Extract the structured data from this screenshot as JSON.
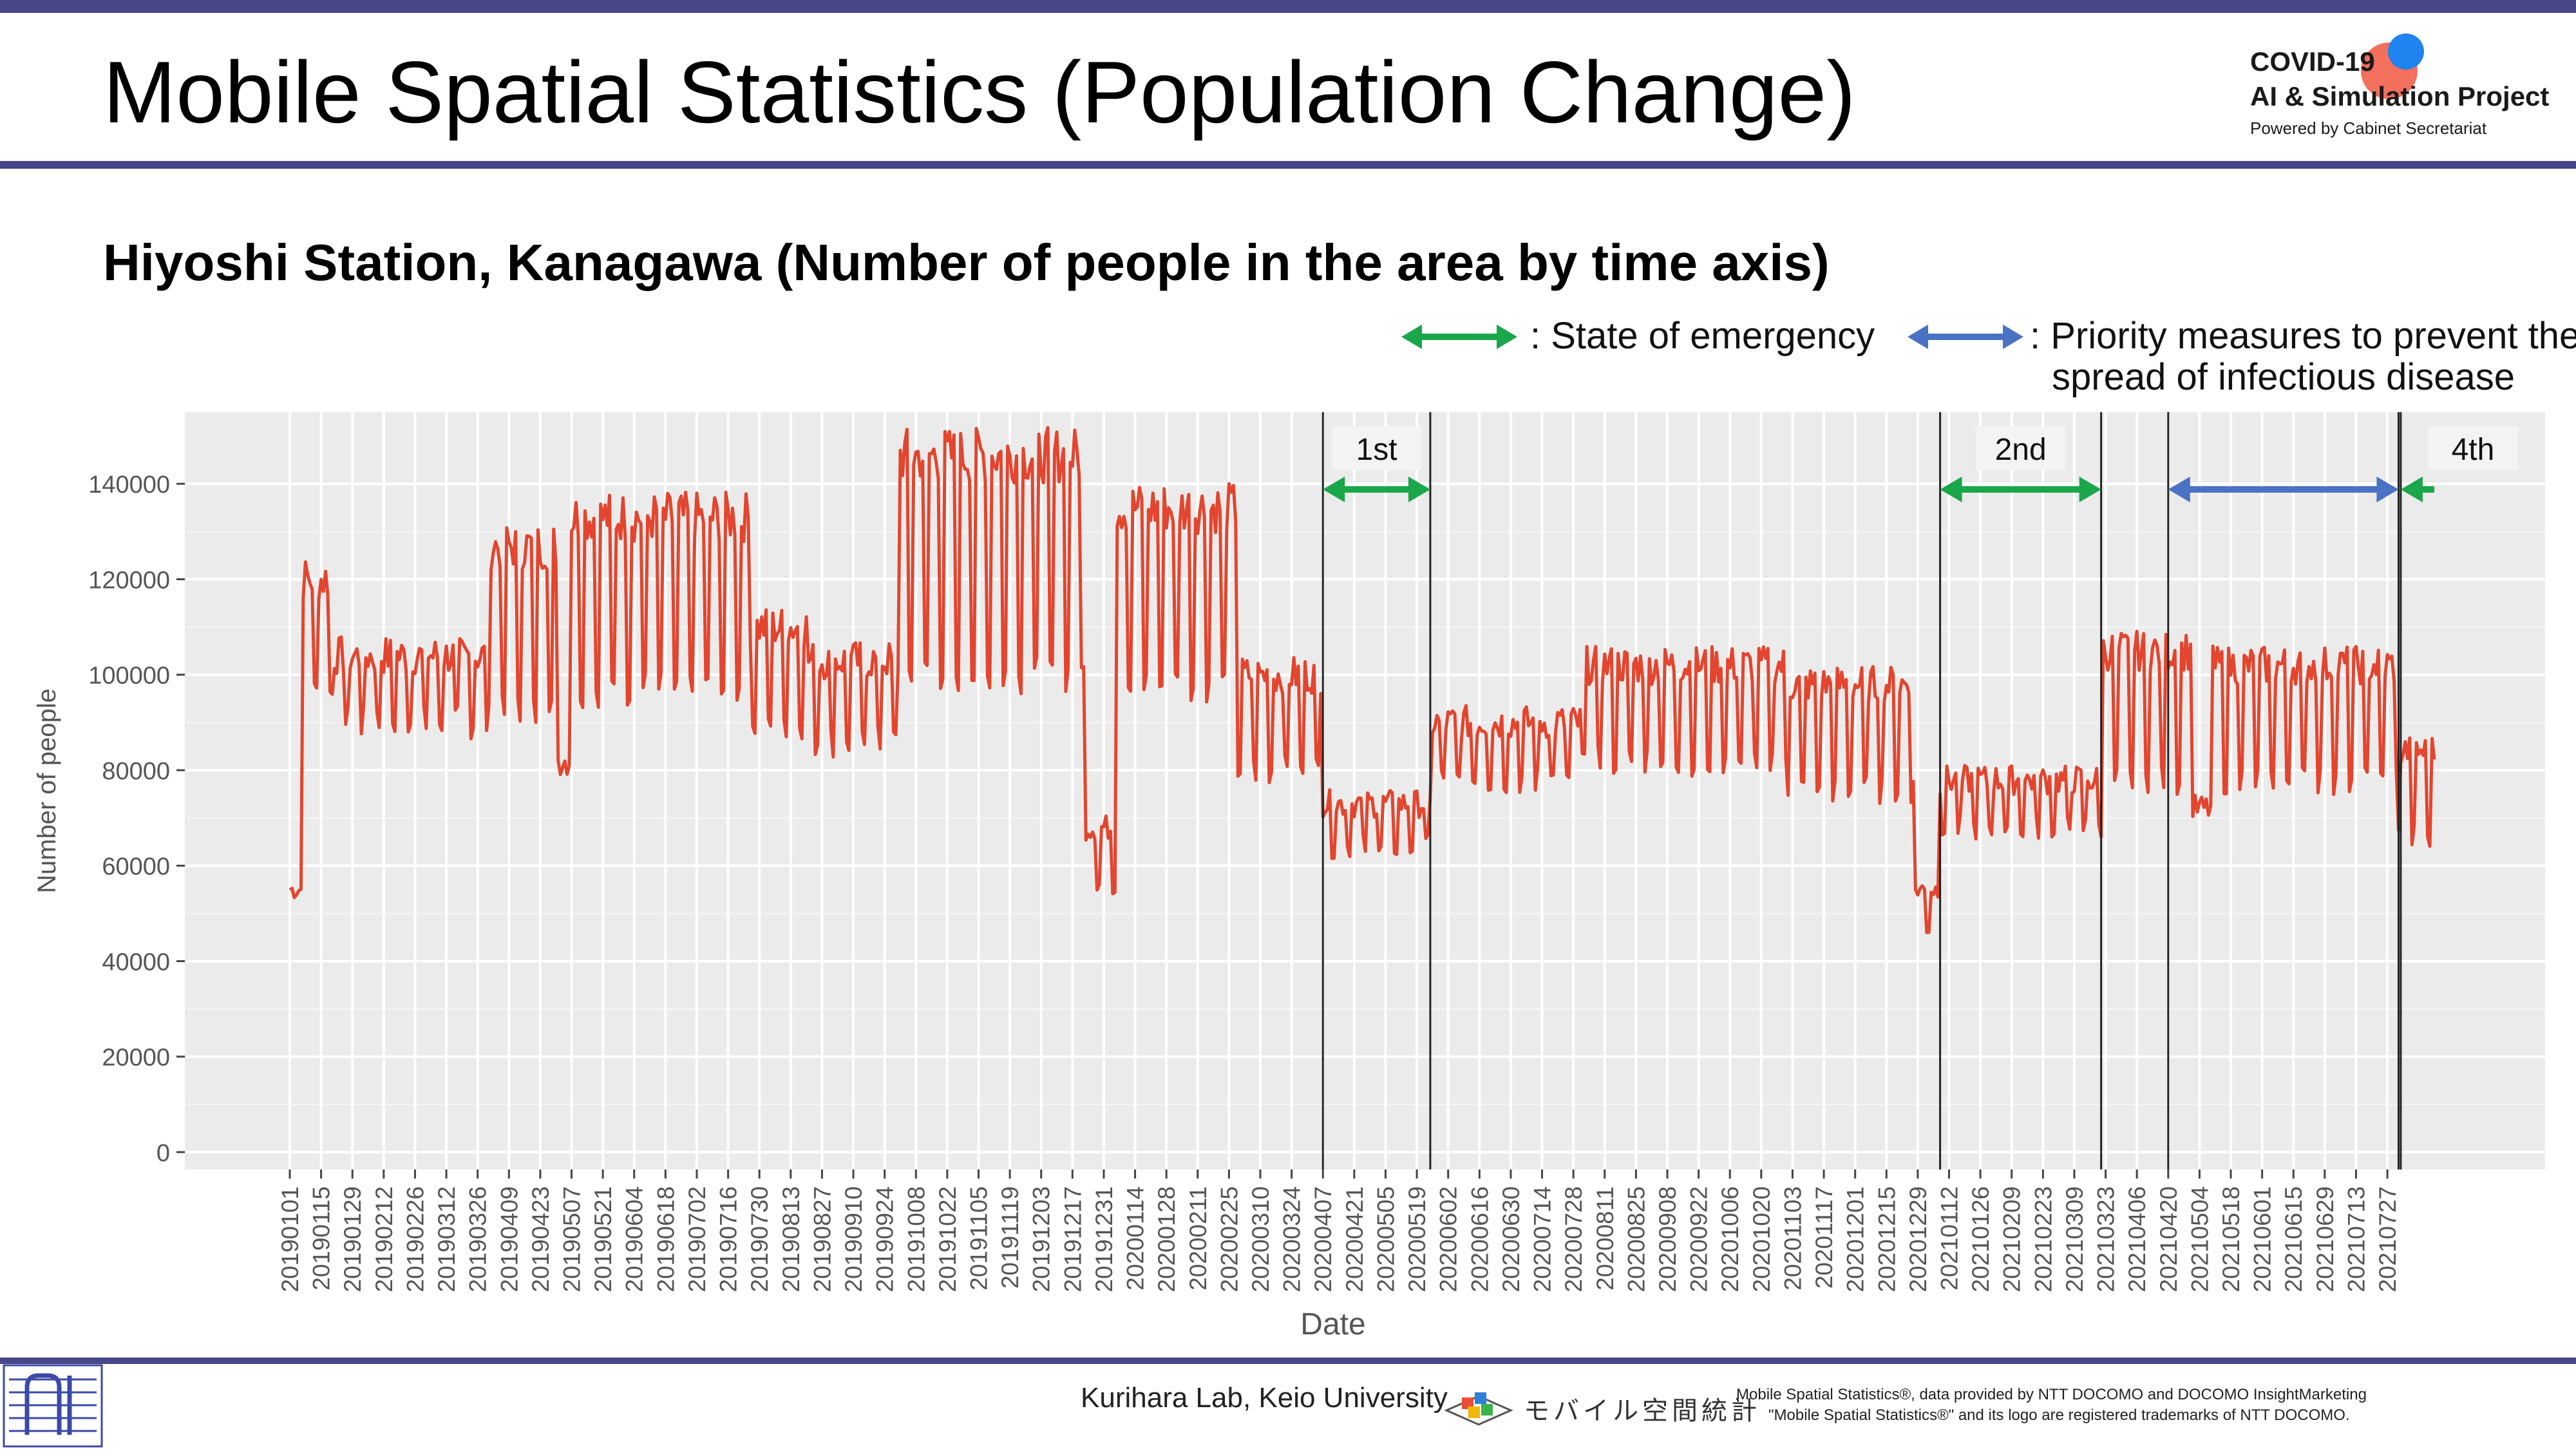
{
  "page": {
    "title": "Mobile Spatial Statistics (Population Change)",
    "subtitle": "Hiyoshi Station, Kanagawa (Number of people in the area by time axis)",
    "accent_color": "#47478a"
  },
  "logo": {
    "line1": "COVID-19",
    "line2": "AI & Simulation Project",
    "line3": "Powered by Cabinet Secretariat"
  },
  "legend": {
    "emergency_label": ": State of emergency",
    "emergency_color": "#1aa64a",
    "priority_label_line1": ": Priority measures to prevent the",
    "priority_label_line2": "spread of infectious disease",
    "priority_color": "#4a72c4"
  },
  "footer": {
    "lab": "Kurihara Lab, Keio University",
    "docomo_logo_text": "モバイル空間統計",
    "note1": "Mobile Spatial Statistics®, data provided by NTT DOCOMO and DOCOMO InsightMarketing",
    "note2": "\"Mobile Spatial Statistics®\" and its logo are registered trademarks of NTT DOCOMO.",
    "left_logo_icon": "lab-logo-icon"
  },
  "chart_data": {
    "type": "line",
    "xlabel": "Date",
    "ylabel": "Number of people",
    "ylim": [
      0,
      155000
    ],
    "y_ticks": [
      0,
      20000,
      40000,
      60000,
      80000,
      100000,
      120000,
      140000
    ],
    "x_tick_labels": [
      "20190101",
      "20190115",
      "20190129",
      "20190212",
      "20190226",
      "20190312",
      "20190326",
      "20190409",
      "20190423",
      "20190507",
      "20190521",
      "20190604",
      "20190618",
      "20190702",
      "20190716",
      "20190730",
      "20190813",
      "20190827",
      "20190910",
      "20190924",
      "20191008",
      "20191022",
      "20191105",
      "20191119",
      "20191203",
      "20191217",
      "20191231",
      "20200114",
      "20200128",
      "20200211",
      "20200225",
      "20200310",
      "20200324",
      "20200407",
      "20200421",
      "20200505",
      "20200519",
      "20200602",
      "20200616",
      "20200630",
      "20200714",
      "20200728",
      "20200811",
      "20200825",
      "20200908",
      "20200922",
      "20201006",
      "20201020",
      "20201103",
      "20201117",
      "20201201",
      "20201215",
      "20201229",
      "20210112",
      "20210126",
      "20210209",
      "20210223",
      "20210309",
      "20210323",
      "20210406",
      "20210420",
      "20210504",
      "20210518",
      "20210601",
      "20210615",
      "20210629",
      "20210713",
      "20210727"
    ],
    "x_range": [
      "2019-01-01",
      "2021-08-17"
    ],
    "grid": true,
    "background": "#ebebeb",
    "line_color": "#e3452e",
    "phases": [
      {
        "label": "1st",
        "start": "2020-04-07",
        "end": "2020-05-25",
        "kind": "emergency"
      },
      {
        "label": "2nd",
        "start": "2021-01-08",
        "end": "2021-03-21",
        "kind": "emergency"
      },
      {
        "label": "",
        "start": "2021-04-20",
        "end": "2021-08-01",
        "kind": "priority"
      },
      {
        "label": "4th",
        "start": "2021-08-02",
        "end": "2021-08-17",
        "kind": "emergency"
      }
    ],
    "series": [
      {
        "segments": [
          {
            "start": "2019-01-01",
            "end": "2019-01-06",
            "weekday": 55000,
            "weekend": 55000
          },
          {
            "start": "2019-01-07",
            "end": "2019-01-20",
            "weekday": 120000,
            "weekend": 96000
          },
          {
            "start": "2019-01-21",
            "end": "2019-03-31",
            "weekday": 104000,
            "weekend": 90000
          },
          {
            "start": "2019-04-01",
            "end": "2019-04-30",
            "weekday": 127000,
            "weekend": 92000
          },
          {
            "start": "2019-05-01",
            "end": "2019-05-06",
            "weekday": 82000,
            "weekend": 82000
          },
          {
            "start": "2019-05-07",
            "end": "2019-07-25",
            "weekday": 133000,
            "weekend": 97000
          },
          {
            "start": "2019-07-26",
            "end": "2019-08-20",
            "weekday": 110000,
            "weekend": 90000
          },
          {
            "start": "2019-08-21",
            "end": "2019-09-30",
            "weekday": 103000,
            "weekend": 86000
          },
          {
            "start": "2019-10-01",
            "end": "2019-12-22",
            "weekday": 146000,
            "weekend": 100000
          },
          {
            "start": "2019-12-23",
            "end": "2020-01-05",
            "weekday": 68000,
            "weekend": 56000
          },
          {
            "start": "2020-01-06",
            "end": "2020-02-28",
            "weekday": 135000,
            "weekend": 98000
          },
          {
            "start": "2020-02-29",
            "end": "2020-04-06",
            "weekday": 100000,
            "weekend": 80000
          },
          {
            "start": "2020-04-07",
            "end": "2020-05-25",
            "weekday": 73000,
            "weekend": 64000
          },
          {
            "start": "2020-05-26",
            "end": "2020-07-31",
            "weekday": 90000,
            "weekend": 78000
          },
          {
            "start": "2020-08-01",
            "end": "2020-10-31",
            "weekday": 102000,
            "weekend": 82000
          },
          {
            "start": "2020-11-01",
            "end": "2020-12-27",
            "weekday": 98000,
            "weekend": 76000
          },
          {
            "start": "2020-12-28",
            "end": "2021-01-07",
            "weekday": 55000,
            "weekend": 47000
          },
          {
            "start": "2021-01-08",
            "end": "2021-03-21",
            "weekday": 78000,
            "weekend": 68000
          },
          {
            "start": "2021-03-22",
            "end": "2021-04-30",
            "weekday": 105000,
            "weekend": 78000
          },
          {
            "start": "2021-05-01",
            "end": "2021-05-09",
            "weekday": 72000,
            "weekend": 72000
          },
          {
            "start": "2021-05-10",
            "end": "2021-07-31",
            "weekday": 102000,
            "weekend": 78000
          },
          {
            "start": "2021-08-01",
            "end": "2021-08-17",
            "weekday": 84000,
            "weekend": 66000
          }
        ]
      }
    ]
  }
}
